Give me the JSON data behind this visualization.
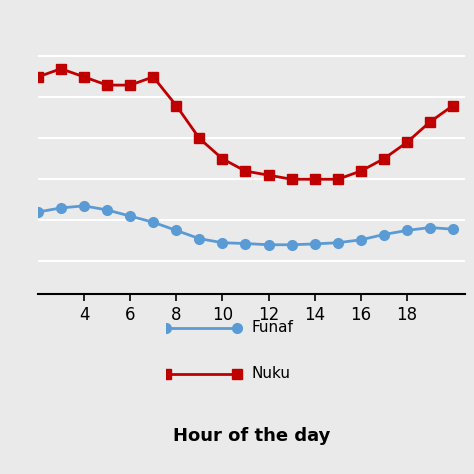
{
  "hours": [
    2,
    3,
    4,
    5,
    6,
    7,
    8,
    9,
    10,
    11,
    12,
    13,
    14,
    15,
    16,
    17,
    18,
    19,
    20
  ],
  "funafuti": [
    0.62,
    0.63,
    0.635,
    0.625,
    0.61,
    0.595,
    0.575,
    0.555,
    0.545,
    0.543,
    0.54,
    0.54,
    0.542,
    0.545,
    0.552,
    0.565,
    0.575,
    0.582,
    0.578
  ],
  "nukualofa": [
    0.95,
    0.97,
    0.95,
    0.93,
    0.93,
    0.95,
    0.88,
    0.8,
    0.75,
    0.72,
    0.71,
    0.7,
    0.7,
    0.7,
    0.72,
    0.75,
    0.79,
    0.84,
    0.88
  ],
  "funafuti_color": "#5B9BD5",
  "nukualofa_color": "#C00000",
  "funafuti_label": "Funaf",
  "nukualofa_label": "Nuku",
  "xlabel": "Hour of the day",
  "xticks": [
    4,
    6,
    8,
    10,
    12,
    14,
    16,
    18
  ],
  "xlim": [
    2.0,
    20.5
  ],
  "ylim": [
    0.42,
    1.08
  ],
  "yticks": [
    0.5,
    0.6,
    0.7,
    0.8,
    0.9,
    1.0
  ],
  "background_color": "#eaeaea",
  "grid_color": "#ffffff",
  "linewidth": 2.0,
  "markersize": 7
}
